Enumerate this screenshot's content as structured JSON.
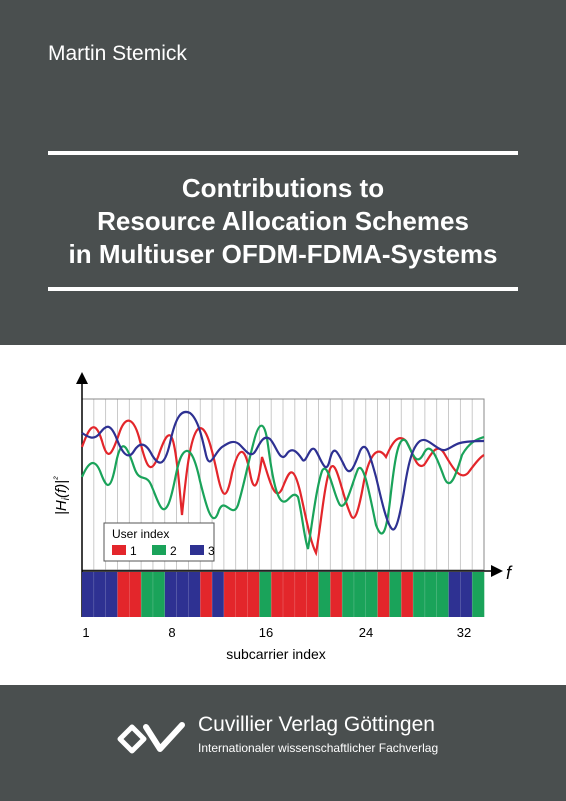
{
  "author": "Martin Stemick",
  "title_lines": [
    "Contributions to",
    "Resource Allocation Schemes",
    "in Multiuser OFDM-FDMA-Systems"
  ],
  "figure": {
    "y_axis_label": "|H_i(f)|²",
    "x_axis_symbol": "f",
    "x_label": "subcarrier index",
    "x_ticks": [
      "1",
      "8",
      "16",
      "24",
      "32"
    ],
    "legend": {
      "title": "User index",
      "entries": [
        {
          "label": "1",
          "color": "#e3262b"
        },
        {
          "label": "2",
          "color": "#1aa35a"
        },
        {
          "label": "3",
          "color": "#2e3192"
        }
      ]
    },
    "allocation": [
      3,
      3,
      3,
      1,
      1,
      2,
      2,
      3,
      3,
      3,
      1,
      3,
      1,
      1,
      1,
      2,
      1,
      1,
      1,
      1,
      2,
      1,
      2,
      2,
      2,
      1,
      2,
      1,
      2,
      2,
      2,
      3,
      3,
      2
    ]
  },
  "colors": {
    "background_dark": "#4a4f4f",
    "user1": "#e3262b",
    "user2": "#1aa35a",
    "user3": "#2e3192"
  },
  "publisher": {
    "name": "Cuvillier Verlag Göttingen",
    "subtitle": "Internationaler wissenschaftlicher Fachverlag",
    "logo_icon": "cuvillier-logo-icon"
  }
}
